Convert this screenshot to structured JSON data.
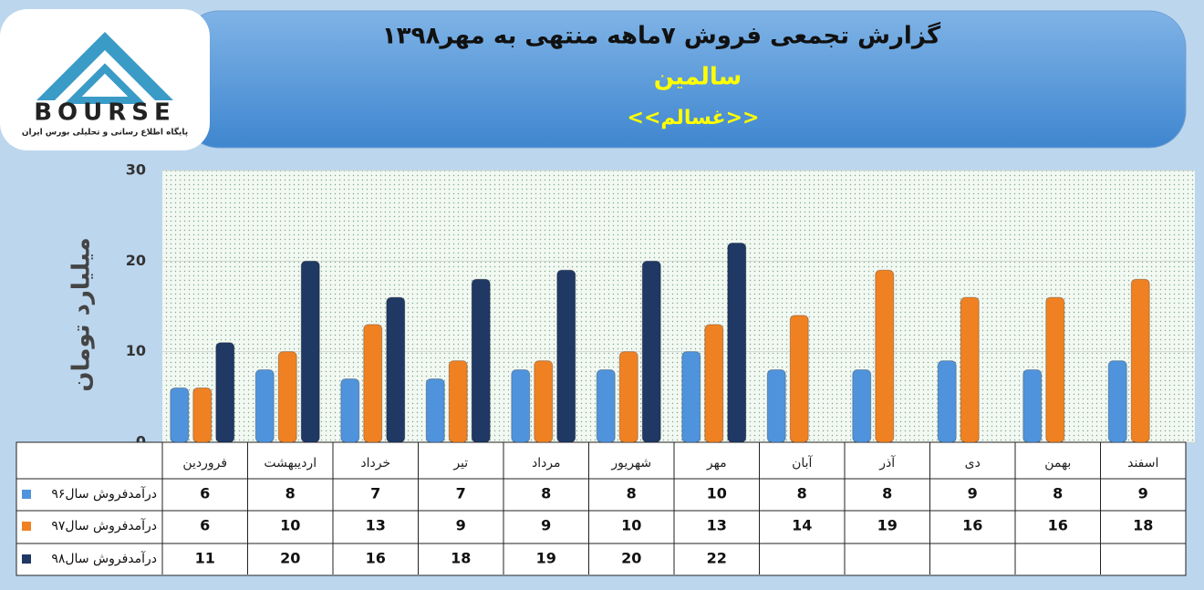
{
  "logo": {
    "name": "BOURSE",
    "tagline": "پایگاه اطلاع رسانی و تحلیلی بورس ایران"
  },
  "chart_data": {
    "type": "bar",
    "title": "گزارش تجمعی فروش ۷ماهه منتهی به مهر۱۳۹۸",
    "subtitle": "سالمین",
    "symbol": "<<غسالم>>",
    "y_label": "میلیارد تومان",
    "categories": [
      "فروردین",
      "اردیبهشت",
      "خرداد",
      "تیر",
      "مرداد",
      "شهریور",
      "مهر",
      "آبان",
      "آذر",
      "دی",
      "بهمن",
      "اسفند"
    ],
    "series": [
      {
        "name": "درآمدفروش سال۹۶",
        "color": "#4f93dc",
        "values": [
          6,
          8,
          7,
          7,
          8,
          8,
          10,
          8,
          8,
          9,
          8,
          9
        ]
      },
      {
        "name": "درآمدفروش سال۹۷",
        "color": "#f08122",
        "values": [
          6,
          10,
          13,
          9,
          9,
          10,
          13,
          14,
          19,
          16,
          16,
          18
        ]
      },
      {
        "name": "درآمدفروش سال۹۸",
        "color": "#1f3864",
        "values": [
          11,
          20,
          16,
          18,
          19,
          20,
          22,
          null,
          null,
          null,
          null,
          null
        ]
      }
    ],
    "ylim": [
      0,
      30
    ],
    "yticks": [
      0,
      10,
      20,
      30
    ],
    "grid": true
  }
}
